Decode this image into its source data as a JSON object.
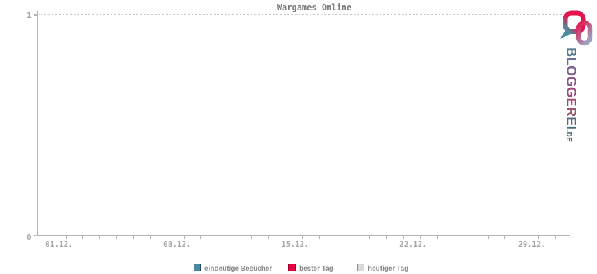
{
  "title": "Wargames Online",
  "y_axis": {
    "max_label": "1",
    "min_label": "0"
  },
  "x_axis": {
    "labels": [
      "01.12.",
      "08.12.",
      "15.12.",
      "22.12.",
      "29.12."
    ]
  },
  "legend": {
    "items": [
      {
        "label": "eindeutige Besucher",
        "fill": "#4d87a1",
        "border": "#1d4961"
      },
      {
        "label": "bester Tag",
        "fill": "#e80040",
        "border": "#9c0030"
      },
      {
        "label": "heutiger Tag",
        "fill": "#d9d9d9",
        "border": "#8f8f8f"
      }
    ]
  },
  "logo": {
    "word": "BLOGGEREI",
    "letter_colors": [
      "#547a8c",
      "#68708f",
      "#7b6492",
      "#8f5789",
      "#9e4b7d",
      "#a34d73",
      "#9b5570",
      "#5a697e",
      "#4e6a80"
    ],
    "tld": ".DE",
    "tld_color": "#47687e",
    "icon_name": "chain-links-icon",
    "icon_colors": {
      "red": "#e6134e",
      "teal": "#4e8ca0",
      "slate": "#9aa0bd"
    }
  },
  "chart_data": {
    "type": "line",
    "title": "Wargames Online",
    "xlabel": "",
    "ylabel": "",
    "ylim": [
      0,
      1
    ],
    "y_tick_labels": [
      "0",
      "1"
    ],
    "x_major_tick_labels": [
      "01.12.",
      "08.12.",
      "15.12.",
      "22.12.",
      "29.12."
    ],
    "x_major_tick_day_indices": [
      0,
      7,
      14,
      21,
      28
    ],
    "x_minor_tick_count": 31,
    "grid": {
      "horizontal_dotted_at": [
        1
      ]
    },
    "legend_position": "bottom",
    "series": [
      {
        "name": "eindeutige Besucher",
        "color": "#4d87a1",
        "values": []
      },
      {
        "name": "bester Tag",
        "color": "#e80040",
        "values": []
      },
      {
        "name": "heutiger Tag",
        "color": "#d9d9d9",
        "values": []
      }
    ]
  }
}
